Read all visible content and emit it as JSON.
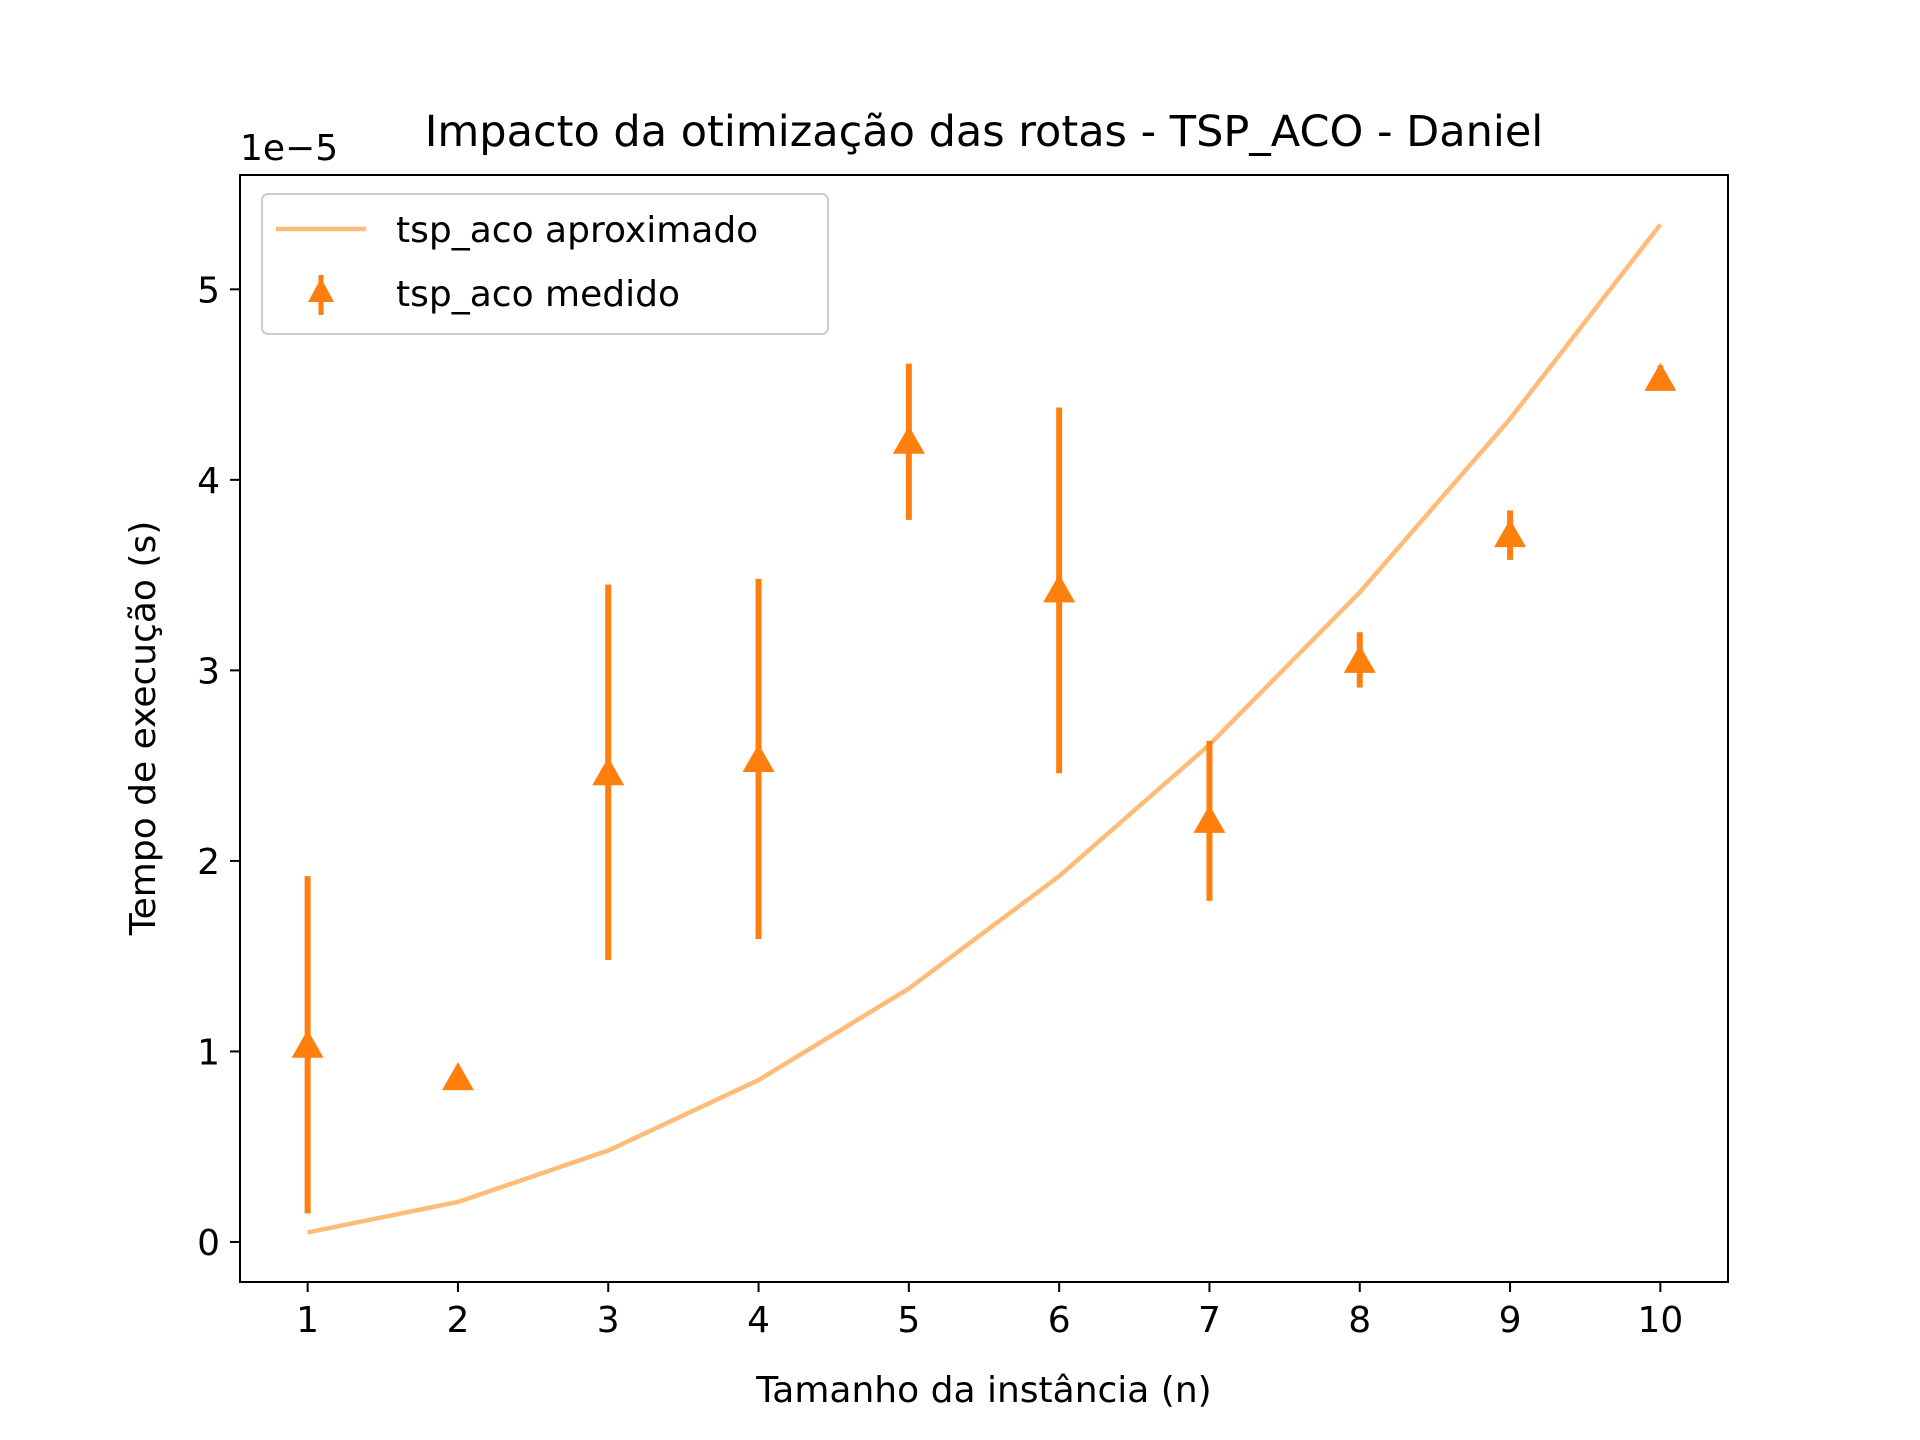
{
  "chart_data": {
    "type": "line",
    "title": "Impacto da otimização das rotas - TSP_ACO - Daniel",
    "xlabel": "Tamanho da instância (n)",
    "ylabel": "Tempo de execução (s)",
    "y_offset_label": "1e−5",
    "xlim": [
      0.55,
      10.45
    ],
    "ylim": [
      -0.21,
      5.6
    ],
    "x_ticks": [
      1,
      2,
      3,
      4,
      5,
      6,
      7,
      8,
      9,
      10
    ],
    "y_ticks": [
      0,
      1,
      2,
      3,
      4,
      5
    ],
    "grid": false,
    "legend_position": "upper-left",
    "series": [
      {
        "name": "tsp_aco aproximado",
        "kind": "line",
        "color": "#ffbb78",
        "x": [
          1,
          2,
          3,
          4,
          5,
          6,
          7,
          8,
          9,
          10
        ],
        "y": [
          0.05,
          0.21,
          0.48,
          0.85,
          1.33,
          1.92,
          2.61,
          3.41,
          4.32,
          5.34
        ]
      },
      {
        "name": "tsp_aco medido",
        "kind": "errorbar",
        "marker": "triangle-up",
        "color": "#ff7f0e",
        "x": [
          1,
          2,
          3,
          4,
          5,
          6,
          7,
          8,
          9,
          10
        ],
        "y": [
          1.03,
          0.86,
          2.46,
          2.53,
          4.2,
          3.42,
          2.21,
          3.05,
          3.71,
          4.53
        ],
        "err_low": [
          0.15,
          0.86,
          1.48,
          1.59,
          3.79,
          2.46,
          1.79,
          2.91,
          3.58,
          4.48
        ],
        "err_high": [
          1.92,
          0.86,
          3.45,
          3.48,
          4.61,
          4.38,
          2.63,
          3.2,
          3.84,
          4.6
        ]
      }
    ]
  }
}
